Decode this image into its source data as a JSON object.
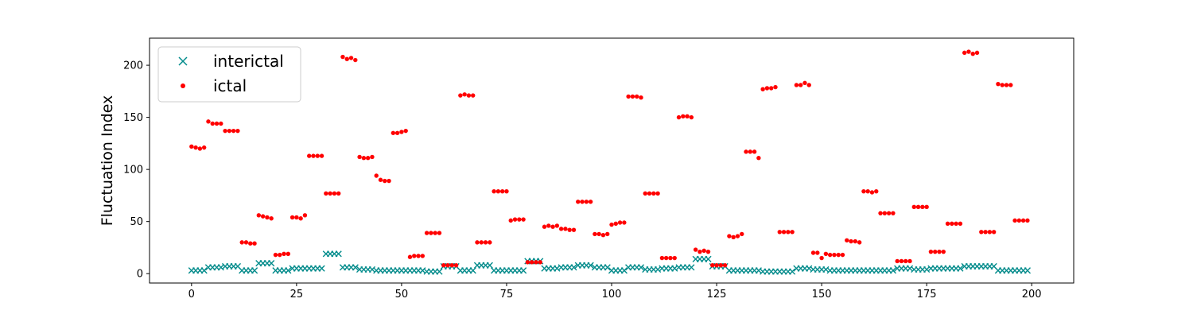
{
  "chart_data": {
    "type": "scatter",
    "title": "",
    "xlabel": "",
    "ylabel": "Fluctuation Index",
    "xlim": [
      -10,
      210
    ],
    "ylim": [
      -9,
      226
    ],
    "xticks": [
      "0",
      "25",
      "50",
      "75",
      "100",
      "125",
      "150",
      "175",
      "200"
    ],
    "yticks": [
      "0",
      "50",
      "100",
      "150",
      "200"
    ],
    "grid": false,
    "legend_position": "top-left",
    "series": [
      {
        "name": "interictal",
        "marker": "x",
        "color": "#008b8b",
        "x": [
          0,
          1,
          2,
          3,
          4,
          5,
          6,
          7,
          8,
          9,
          10,
          11,
          12,
          13,
          14,
          15,
          16,
          17,
          18,
          19,
          20,
          21,
          22,
          23,
          24,
          25,
          26,
          27,
          28,
          29,
          30,
          31,
          32,
          33,
          34,
          35,
          36,
          37,
          38,
          39,
          40,
          41,
          42,
          43,
          44,
          45,
          46,
          47,
          48,
          49,
          50,
          51,
          52,
          53,
          54,
          55,
          56,
          57,
          58,
          59,
          60,
          61,
          62,
          63,
          64,
          65,
          66,
          67,
          68,
          69,
          70,
          71,
          72,
          73,
          74,
          75,
          76,
          77,
          78,
          79,
          80,
          81,
          82,
          83,
          84,
          85,
          86,
          87,
          88,
          89,
          90,
          91,
          92,
          93,
          94,
          95,
          96,
          97,
          98,
          99,
          100,
          101,
          102,
          103,
          104,
          105,
          106,
          107,
          108,
          109,
          110,
          111,
          112,
          113,
          114,
          115,
          116,
          117,
          118,
          119,
          120,
          121,
          122,
          123,
          124,
          125,
          126,
          127,
          128,
          129,
          130,
          131,
          132,
          133,
          134,
          135,
          136,
          137,
          138,
          139,
          140,
          141,
          142,
          143,
          144,
          145,
          146,
          147,
          148,
          149,
          150,
          151,
          152,
          153,
          154,
          155,
          156,
          157,
          158,
          159,
          160,
          161,
          162,
          163,
          164,
          165,
          166,
          167,
          168,
          169,
          170,
          171,
          172,
          173,
          174,
          175,
          176,
          177,
          178,
          179,
          180,
          181,
          182,
          183,
          184,
          185,
          186,
          187,
          188,
          189,
          190,
          191,
          192,
          193,
          194,
          195,
          196,
          197,
          198,
          199
        ],
        "y": [
          3,
          3,
          3,
          3,
          6,
          6,
          6,
          6,
          7,
          7,
          7,
          7,
          3,
          3,
          3,
          3,
          10,
          10,
          10,
          10,
          3,
          3,
          3,
          3,
          5,
          5,
          5,
          5,
          5,
          5,
          5,
          5,
          19,
          19,
          19,
          19,
          6,
          6,
          6,
          6,
          4,
          4,
          4,
          4,
          3,
          3,
          3,
          3,
          3,
          3,
          3,
          3,
          3,
          3,
          3,
          3,
          2,
          2,
          2,
          2,
          7,
          7,
          7,
          7,
          3,
          3,
          3,
          3,
          8,
          8,
          8,
          8,
          3,
          3,
          3,
          3,
          3,
          3,
          3,
          3,
          12,
          12,
          12,
          12,
          5,
          5,
          5,
          5,
          6,
          6,
          6,
          6,
          8,
          8,
          8,
          8,
          6,
          6,
          6,
          6,
          3,
          3,
          3,
          3,
          6,
          6,
          6,
          6,
          4,
          4,
          4,
          4,
          5,
          5,
          5,
          5,
          6,
          6,
          6,
          6,
          14,
          14,
          14,
          14,
          7,
          7,
          7,
          7,
          3,
          3,
          3,
          3,
          3,
          3,
          3,
          3,
          2,
          2,
          2,
          2,
          2,
          2,
          2,
          2,
          5,
          5,
          5,
          5,
          4,
          4,
          4,
          4,
          3,
          3,
          3,
          3,
          3,
          3,
          3,
          3,
          3,
          3,
          3,
          3,
          3,
          3,
          3,
          3,
          5,
          5,
          5,
          5,
          4,
          4,
          4,
          4,
          5,
          5,
          5,
          5,
          5,
          5,
          5,
          5,
          7,
          7,
          7,
          7,
          7,
          7,
          7,
          7,
          3,
          3,
          3,
          3,
          3,
          3,
          3,
          3
        ]
      },
      {
        "name": "ictal",
        "marker": "o",
        "color": "#ff0000",
        "x": [
          0,
          1,
          2,
          3,
          4,
          5,
          6,
          7,
          8,
          9,
          10,
          11,
          12,
          13,
          14,
          15,
          16,
          17,
          18,
          19,
          20,
          21,
          22,
          23,
          24,
          25,
          26,
          27,
          28,
          29,
          30,
          31,
          32,
          33,
          34,
          35,
          36,
          37,
          38,
          39,
          40,
          41,
          42,
          43,
          44,
          45,
          46,
          47,
          48,
          49,
          50,
          51,
          52,
          53,
          54,
          55,
          56,
          57,
          58,
          59,
          60,
          61,
          62,
          63,
          64,
          65,
          66,
          67,
          68,
          69,
          70,
          71,
          72,
          73,
          74,
          75,
          76,
          77,
          78,
          79,
          80,
          81,
          82,
          83,
          84,
          85,
          86,
          87,
          88,
          89,
          90,
          91,
          92,
          93,
          94,
          95,
          96,
          97,
          98,
          99,
          100,
          101,
          102,
          103,
          104,
          105,
          106,
          107,
          108,
          109,
          110,
          111,
          112,
          113,
          114,
          115,
          116,
          117,
          118,
          119,
          120,
          121,
          122,
          123,
          124,
          125,
          126,
          127,
          128,
          129,
          130,
          131,
          132,
          133,
          134,
          135,
          136,
          137,
          138,
          139,
          140,
          141,
          142,
          143,
          144,
          145,
          146,
          147,
          148,
          149,
          150,
          151,
          152,
          153,
          154,
          155,
          156,
          157,
          158,
          159,
          160,
          161,
          162,
          163,
          164,
          165,
          166,
          167,
          168,
          169,
          170,
          171,
          172,
          173,
          174,
          175,
          176,
          177,
          178,
          179,
          180,
          181,
          182,
          183,
          184,
          185,
          186,
          187,
          188,
          189,
          190,
          191,
          192,
          193,
          194,
          195,
          196,
          197,
          198,
          199
        ],
        "y": [
          122,
          121,
          120,
          121,
          146,
          144,
          144,
          144,
          137,
          137,
          137,
          137,
          30,
          30,
          29,
          29,
          56,
          55,
          54,
          53,
          18,
          18,
          19,
          19,
          54,
          54,
          53,
          56,
          113,
          113,
          113,
          113,
          77,
          77,
          77,
          77,
          208,
          206,
          207,
          205,
          112,
          111,
          111,
          112,
          94,
          90,
          89,
          89,
          135,
          135,
          136,
          137,
          16,
          17,
          17,
          17,
          39,
          39,
          39,
          39,
          8,
          8,
          8,
          8,
          171,
          172,
          171,
          171,
          30,
          30,
          30,
          30,
          79,
          79,
          79,
          79,
          51,
          52,
          52,
          52,
          11,
          11,
          11,
          11,
          45,
          46,
          45,
          46,
          43,
          43,
          42,
          42,
          69,
          69,
          69,
          69,
          38,
          38,
          37,
          38,
          47,
          48,
          49,
          49,
          170,
          170,
          170,
          169,
          77,
          77,
          77,
          77,
          15,
          15,
          15,
          15,
          150,
          151,
          151,
          150,
          23,
          21,
          22,
          21,
          8,
          8,
          8,
          8,
          36,
          35,
          36,
          38,
          117,
          117,
          117,
          111,
          177,
          178,
          178,
          179,
          40,
          40,
          40,
          40,
          181,
          181,
          183,
          181,
          20,
          20,
          15,
          19,
          18,
          18,
          18,
          18,
          32,
          31,
          31,
          30,
          79,
          79,
          78,
          79,
          58,
          58,
          58,
          58,
          12,
          12,
          12,
          12,
          64,
          64,
          64,
          64,
          21,
          21,
          21,
          21,
          48,
          48,
          48,
          48,
          212,
          213,
          211,
          212,
          40,
          40,
          40,
          40,
          182,
          181,
          181,
          181,
          51,
          51,
          51,
          51
        ]
      }
    ]
  }
}
